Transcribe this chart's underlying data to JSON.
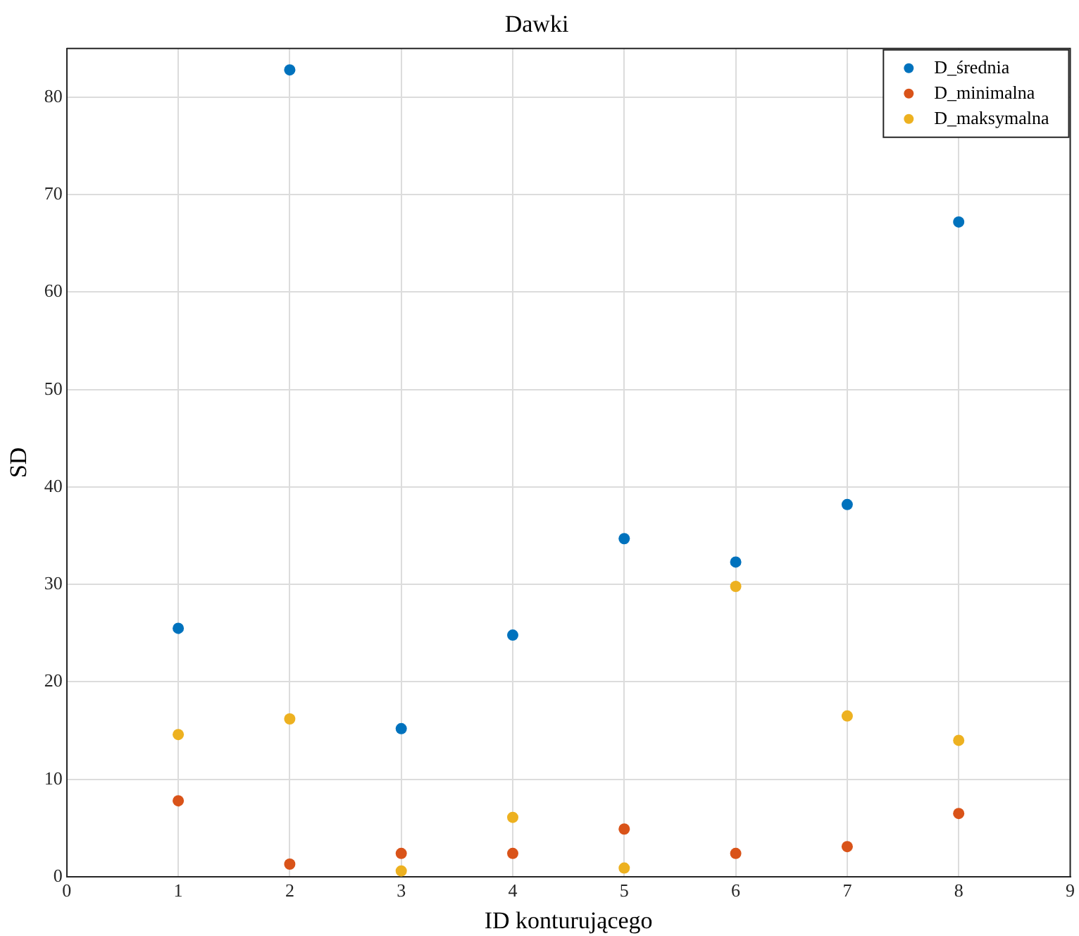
{
  "chart_data": {
    "type": "scatter",
    "title": "Dawki",
    "xlabel": "ID konturującego",
    "ylabel": "SD",
    "xlim": [
      0,
      9
    ],
    "xticks": [
      0,
      1,
      2,
      3,
      4,
      5,
      6,
      7,
      8,
      9
    ],
    "ylim": [
      0,
      85
    ],
    "yticks": [
      0,
      10,
      20,
      30,
      40,
      50,
      60,
      70,
      80
    ],
    "grid": true,
    "legend": "top right",
    "marker": "circle",
    "x": [
      1,
      2,
      3,
      4,
      5,
      6,
      7,
      8
    ],
    "series": [
      {
        "name": "D_średnia",
        "color": "#0072bd",
        "values": [
          25.5,
          82.8,
          15.2,
          24.8,
          34.7,
          32.3,
          38.2,
          67.2
        ]
      },
      {
        "name": "D_minimalna",
        "color": "#d95319",
        "values": [
          7.8,
          1.3,
          2.4,
          2.4,
          4.9,
          2.4,
          3.1,
          6.5
        ]
      },
      {
        "name": "D_maksymalna",
        "color": "#edb120",
        "values": [
          14.6,
          16.2,
          0.6,
          6.1,
          0.9,
          29.8,
          16.5,
          14.0
        ]
      }
    ]
  }
}
